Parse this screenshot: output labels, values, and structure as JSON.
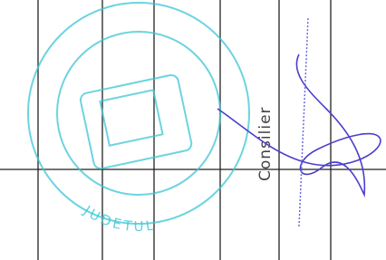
{
  "stamp": {
    "text": "JUDETUL"
  },
  "signatory": {
    "role": "Consilier"
  }
}
